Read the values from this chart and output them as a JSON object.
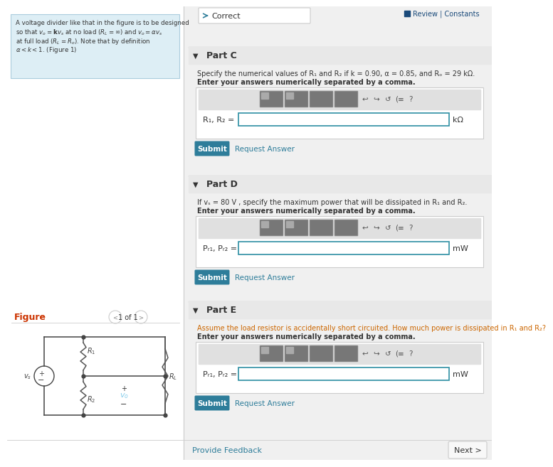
{
  "bg_color": "#f0f0f0",
  "white": "#ffffff",
  "light_blue_bg": "#ddeef5",
  "teal_btn": "#2e7d9a",
  "teal_link": "#2e7d9a",
  "dark_text": "#333333",
  "gray_text": "#888888",
  "border_gray": "#cccccc",
  "panel_header_bg": "#e8e8e8",
  "blue_circuit": "#87ceeb",
  "review_color": "#1a4a7a",
  "fig_label_color": "#cc3300",
  "correct_arrow_color": "#2e7d9a",
  "part_c_label": "Part C",
  "part_c_desc1": "Specify the numerical values of ",
  "part_c_desc2": "R",
  "part_c_desc3": "1",
  "part_c_desc4": " and ",
  "part_c_desc5": "R",
  "part_c_desc6": "2",
  "part_c_desc7": " if ",
  "part_c_desc8": "k",
  "part_c_desc9": " = 0.90, ",
  "part_c_desc10": "α",
  "part_c_desc11": " = 0.85, and ",
  "part_c_desc12": "R",
  "part_c_desc13": "o",
  "part_c_desc14": " = 29 ",
  "part_c_desc15": "kΩ",
  "part_c_note": "Enter your answers numerically separated by a comma.",
  "part_c_input_label": "R",
  "part_c_input_sub": "1",
  "part_c_input_label2": ", R",
  "part_c_input_sub2": "2",
  "part_c_input_eq": " =",
  "part_c_unit": "kΩ",
  "part_d_label": "Part D",
  "part_d_desc": "If vₛ = 80 V , specify the maximum power that will be dissipated in R₁ and R₂.",
  "part_d_note": "Enter your answers numerically separated by a comma.",
  "part_d_input_label": "P",
  "part_d_input_sub": "R₁",
  "part_d_input_label2": ", P",
  "part_d_input_sub2": "R₂",
  "part_d_input_eq": " =",
  "part_d_unit": "mW",
  "part_e_label": "Part E",
  "part_e_desc": "Assume the load resistor is accidentally short circuited. How much power is dissipated in R₁ and R₂?",
  "part_e_note": "Enter your answers numerically separated by a comma.",
  "part_e_input_label": "P",
  "part_e_input_sub": "R₁",
  "part_e_input_label2": ", P",
  "part_e_input_sub2": "R₂",
  "part_e_input_eq": " =",
  "part_e_unit": "mW",
  "figure_label": "Figure",
  "page_label": "1 of 1",
  "review_text": "Review | Constants",
  "correct_text": "Correct",
  "submit_text": "Submit",
  "request_text": "Request Answer",
  "next_text": "Next >",
  "feedback_text": "Provide Feedback",
  "lc": "#444444",
  "resistor_color": "#555555"
}
